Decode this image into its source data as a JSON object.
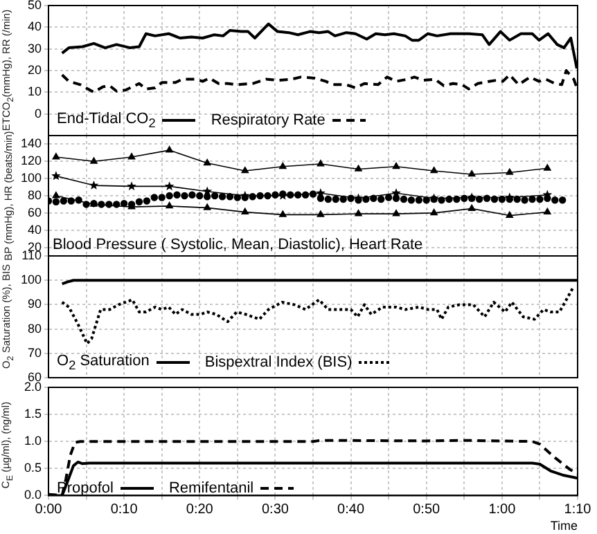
{
  "chart_data": [
    {
      "type": "line",
      "ylabel": "ETCO$_{2}$(mmHg), RR (/min)",
      "xlim": [
        0,
        70
      ],
      "xticks": [
        {
          "value": 0,
          "label": null
        },
        {
          "value": 5,
          "label": null
        },
        {
          "value": 10,
          "label": null
        },
        {
          "value": 15,
          "label": null
        },
        {
          "value": 20,
          "label": null
        },
        {
          "value": 25,
          "label": null
        },
        {
          "value": 30,
          "label": null
        },
        {
          "value": 35,
          "label": null
        },
        {
          "value": 40,
          "label": null
        },
        {
          "value": 45,
          "label": null
        },
        {
          "value": 50,
          "label": null
        },
        {
          "value": 55,
          "label": null
        },
        {
          "value": 60,
          "label": null
        },
        {
          "value": 65,
          "label": null
        },
        {
          "value": 70,
          "label": null
        }
      ],
      "ylim": [
        -10,
        50
      ],
      "yticks": [
        0,
        10,
        20,
        30,
        40,
        50
      ],
      "grid": true,
      "legend": "bottom left",
      "tick_labels": "y",
      "series": [
        {
          "name": "End-Tidal CO$_{2}$",
          "color": "#000000",
          "line_style": "solid",
          "marker": "none",
          "x": [
            1.8,
            2.7,
            4.5,
            6,
            7.5,
            9,
            10.8,
            12,
            12.9,
            14.1,
            15.9,
            17.4,
            18.9,
            20.4,
            21.9,
            23.1,
            24,
            25.5,
            26.4,
            27.3,
            29.1,
            30.3,
            31.8,
            33,
            34.6,
            35.8,
            37,
            37.9,
            39.4,
            40.6,
            42.1,
            43.3,
            44.5,
            45.7,
            47.2,
            48.1,
            49,
            50.2,
            51.4,
            53.2,
            55.6,
            57.4,
            58.3,
            59.8,
            61,
            62.5,
            64,
            64.9,
            66.1,
            67.3,
            68.2,
            69.1,
            69.9
          ],
          "values": [
            28,
            30.5,
            31,
            32.5,
            30.5,
            32,
            30.5,
            31,
            37,
            36,
            37,
            35,
            35.5,
            35,
            36.5,
            36,
            38.5,
            38,
            38,
            35,
            41.5,
            38,
            37.5,
            36.5,
            38,
            37.5,
            38,
            36,
            37.5,
            37,
            34.5,
            37,
            36.5,
            37,
            36,
            34,
            34,
            37,
            36,
            37,
            37,
            36.5,
            32,
            38,
            34,
            37,
            37,
            34,
            37,
            32,
            30.5,
            35,
            21
          ]
        },
        {
          "name": "Respiratory Rate",
          "color": "#000000",
          "line_style": "dashed",
          "marker": "none",
          "x": [
            1.8,
            2.7,
            4.2,
            6,
            7.2,
            8.1,
            9,
            10.2,
            12,
            12.9,
            14.1,
            15,
            16.8,
            17.7,
            19.5,
            20.4,
            21.3,
            22.5,
            23.7,
            24.9,
            27,
            28.8,
            30.3,
            32.2,
            33.4,
            35.2,
            36.7,
            37.6,
            39.4,
            40.6,
            41.8,
            43.6,
            44.8,
            46,
            47.5,
            48.4,
            49.6,
            51.1,
            52.3,
            53.5,
            54.7,
            55.6,
            56.8,
            58.3,
            59.2,
            60.1,
            61,
            62.2,
            63.7,
            64.9,
            65.8,
            67,
            67.9,
            68.5,
            69.5,
            69.9
          ],
          "values": [
            18,
            15,
            13.5,
            10,
            12.5,
            13,
            10.5,
            11,
            14,
            11.5,
            12,
            14.5,
            14.5,
            16,
            16,
            15,
            16.5,
            14,
            14,
            13.5,
            14,
            16,
            15.5,
            16,
            17,
            16.5,
            15,
            13.5,
            13.5,
            12,
            14,
            13.5,
            17,
            15,
            16,
            17,
            15.5,
            16,
            13,
            14,
            13.5,
            11.5,
            14,
            15,
            15.5,
            15,
            18,
            13.5,
            17,
            15,
            16,
            14,
            13.5,
            20,
            16,
            12
          ]
        }
      ]
    },
    {
      "type": "line",
      "ylabel": "BP (mmHg), HR (beats/min)",
      "xlim": [
        0,
        70
      ],
      "xticks": [
        {
          "value": 0,
          "label": null
        },
        {
          "value": 5,
          "label": null
        },
        {
          "value": 10,
          "label": null
        },
        {
          "value": 15,
          "label": null
        },
        {
          "value": 20,
          "label": null
        },
        {
          "value": 25,
          "label": null
        },
        {
          "value": 30,
          "label": null
        },
        {
          "value": 35,
          "label": null
        },
        {
          "value": 40,
          "label": null
        },
        {
          "value": 45,
          "label": null
        },
        {
          "value": 50,
          "label": null
        },
        {
          "value": 55,
          "label": null
        },
        {
          "value": 60,
          "label": null
        },
        {
          "value": 65,
          "label": null
        },
        {
          "value": 70,
          "label": null
        }
      ],
      "ylim": [
        10,
        150
      ],
      "yticks": [
        20,
        40,
        60,
        80,
        100,
        120,
        140
      ],
      "grid": true,
      "tick_labels": "y",
      "annotations": [
        "Blood Pressure ( Systolic, Mean, Diastolic), Heart Rate"
      ],
      "series": [
        {
          "color": "#000000",
          "line_style": "solid",
          "marker": "triangle",
          "x": [
            1,
            6,
            11,
            16,
            21,
            26,
            31,
            36,
            41,
            46,
            51,
            56,
            61,
            66
          ],
          "values": [
            125,
            120,
            125,
            133,
            118,
            109,
            114,
            117,
            111,
            114,
            109,
            105,
            107,
            112
          ]
        },
        {
          "color": "#000000",
          "line_style": "solid",
          "marker": "star",
          "x": [
            1,
            6,
            11,
            16,
            21,
            26,
            31,
            36,
            41,
            46,
            51,
            56,
            61,
            66
          ],
          "values": [
            103,
            92,
            91,
            91,
            85,
            80,
            80,
            83,
            77,
            83,
            77,
            78,
            78,
            81
          ]
        },
        {
          "color": "#000000",
          "line_style": "solid",
          "marker": "triangle",
          "x": [
            1,
            6,
            11,
            16,
            21,
            26,
            31,
            36,
            41,
            46,
            51,
            56,
            61,
            66
          ],
          "values": [
            80,
            70,
            67,
            68,
            66,
            61,
            58,
            58,
            59,
            59,
            60,
            65,
            57,
            61
          ]
        },
        {
          "type": "scatter",
          "color": "#000000",
          "marker": "circle",
          "x": [
            0,
            1,
            2,
            3,
            4,
            5,
            6,
            7,
            8,
            9,
            10,
            11,
            12,
            13,
            14,
            15,
            16,
            17,
            18,
            19,
            20,
            21,
            22,
            23,
            24,
            25,
            26,
            27,
            28,
            29,
            30,
            31,
            32,
            33,
            34,
            35,
            36,
            37,
            38,
            39,
            40,
            41,
            42,
            43,
            44,
            45,
            46,
            47,
            48,
            49,
            50,
            51,
            52,
            53,
            54,
            55,
            56,
            57,
            58,
            59,
            60,
            61,
            62,
            63,
            64,
            65,
            66,
            67,
            68
          ],
          "values": [
            74,
            73,
            74,
            74,
            75,
            70,
            71,
            70,
            70,
            70,
            71,
            70,
            73,
            74,
            78,
            78,
            80,
            81,
            80,
            81,
            80,
            79,
            80,
            79,
            79,
            78,
            78,
            79,
            80,
            80,
            81,
            82,
            81,
            81,
            81,
            82,
            77,
            76,
            76,
            76,
            77,
            75,
            76,
            77,
            76,
            78,
            77,
            76,
            75,
            75,
            75,
            76,
            75,
            76,
            76,
            77,
            77,
            76,
            77,
            76,
            76,
            76,
            76,
            75,
            76,
            76,
            77,
            75,
            75
          ]
        }
      ]
    },
    {
      "type": "line",
      "ylabel": "O$_{2}$ Saturation (%), BIS",
      "xlim": [
        0,
        70
      ],
      "xticks": [
        {
          "value": 0,
          "label": null
        },
        {
          "value": 5,
          "label": null
        },
        {
          "value": 10,
          "label": null
        },
        {
          "value": 15,
          "label": null
        },
        {
          "value": 20,
          "label": null
        },
        {
          "value": 25,
          "label": null
        },
        {
          "value": 30,
          "label": null
        },
        {
          "value": 35,
          "label": null
        },
        {
          "value": 40,
          "label": null
        },
        {
          "value": 45,
          "label": null
        },
        {
          "value": 50,
          "label": null
        },
        {
          "value": 55,
          "label": null
        },
        {
          "value": 60,
          "label": null
        },
        {
          "value": 65,
          "label": null
        },
        {
          "value": 70,
          "label": null
        }
      ],
      "ylim": [
        60,
        110
      ],
      "yticks": [
        60,
        70,
        80,
        90,
        100,
        110
      ],
      "grid": true,
      "legend": "bottom left",
      "tick_labels": "y",
      "series": [
        {
          "name": "O$_{2}$ Saturation",
          "color": "#000000",
          "line_style": "solid",
          "marker": "none",
          "x": [
            1.8,
            2.7,
            3.3,
            70
          ],
          "values": [
            98.5,
            99.5,
            100,
            100
          ]
        },
        {
          "name": "Bispextral Index (BIS)",
          "color": "#000000",
          "line_style": "dotted",
          "marker": "none",
          "x": [
            1.8,
            2.7,
            3.9,
            5.1,
            5.7,
            6.9,
            8.1,
            9.3,
            11.1,
            12,
            12.9,
            14.1,
            15,
            15.9,
            16.8,
            17.7,
            18.9,
            20.1,
            21,
            22.2,
            23.7,
            24.9,
            26.1,
            27.9,
            29.1,
            30.9,
            32.5,
            34,
            35.8,
            37,
            38.2,
            40,
            40.9,
            41.8,
            42.7,
            44.2,
            46,
            47.2,
            49,
            50.2,
            51.4,
            52,
            52.9,
            54.4,
            56.2,
            57.7,
            58.9,
            60.4,
            61.3,
            62.8,
            64.3,
            65.5,
            66.4,
            67.6,
            69.4
          ],
          "values": [
            91,
            89,
            82,
            74,
            76,
            88,
            88,
            90,
            92,
            87,
            87,
            89,
            88,
            89,
            86,
            88,
            86,
            86,
            87,
            86,
            83,
            87,
            86,
            84,
            88,
            91,
            90,
            88,
            92,
            88,
            88,
            88,
            85,
            90,
            86,
            89,
            89,
            88,
            89,
            88,
            88,
            84,
            89,
            90,
            90,
            85,
            91,
            87,
            91,
            85,
            84,
            88,
            87,
            87,
            97
          ]
        }
      ]
    },
    {
      "type": "line",
      "ylabel": "C$_{E}$ (µg/ml), (ng/ml)",
      "xlabel": "Time",
      "xlim": [
        0,
        70
      ],
      "xticks": [
        {
          "value": 0,
          "label": "0:00"
        },
        {
          "value": 5,
          "label": null
        },
        {
          "value": 10,
          "label": "0:10"
        },
        {
          "value": 15,
          "label": null
        },
        {
          "value": 20,
          "label": "0:20"
        },
        {
          "value": 25,
          "label": null
        },
        {
          "value": 30,
          "label": "0:30"
        },
        {
          "value": 35,
          "label": null
        },
        {
          "value": 40,
          "label": "0:40"
        },
        {
          "value": 45,
          "label": null
        },
        {
          "value": 50,
          "label": "0:50"
        },
        {
          "value": 55,
          "label": null
        },
        {
          "value": 60,
          "label": "1:00"
        },
        {
          "value": 65,
          "label": null
        },
        {
          "value": 70,
          "label": "1:10"
        }
      ],
      "ylim": [
        0,
        2
      ],
      "yticks": [
        {
          "value": 0,
          "label": "0.0"
        },
        {
          "value": 0.5,
          "label": "0.5"
        },
        {
          "value": 1,
          "label": "1.0"
        },
        {
          "value": 1.5,
          "label": "1.5"
        },
        {
          "value": 2,
          "label": "2.0"
        }
      ],
      "grid": true,
      "legend": "bottom left",
      "series": [
        {
          "name": "Propofol",
          "color": "#000000",
          "line_style": "solid",
          "marker": "none",
          "x": [
            0,
            1.8,
            2.5,
            3.3,
            3.9,
            4.5,
            5.4,
            64,
            65,
            66.5,
            68,
            70
          ],
          "values": [
            0,
            0,
            0.25,
            0.55,
            0.62,
            0.59,
            0.6,
            0.6,
            0.58,
            0.45,
            0.38,
            0.32
          ]
        },
        {
          "name": "Remifentanil",
          "color": "#000000",
          "line_style": "dashed",
          "marker": "none",
          "x": [
            0,
            1,
            1.8,
            2.3,
            2.9,
            3.5,
            4.2,
            35,
            36,
            50,
            55,
            64,
            65,
            67,
            69,
            70
          ],
          "values": [
            0.02,
            0.01,
            0,
            0.3,
            0.75,
            0.98,
            1,
            1,
            1.02,
            1.01,
            1.02,
            1,
            0.95,
            0.7,
            0.48,
            0.4
          ]
        }
      ]
    }
  ]
}
